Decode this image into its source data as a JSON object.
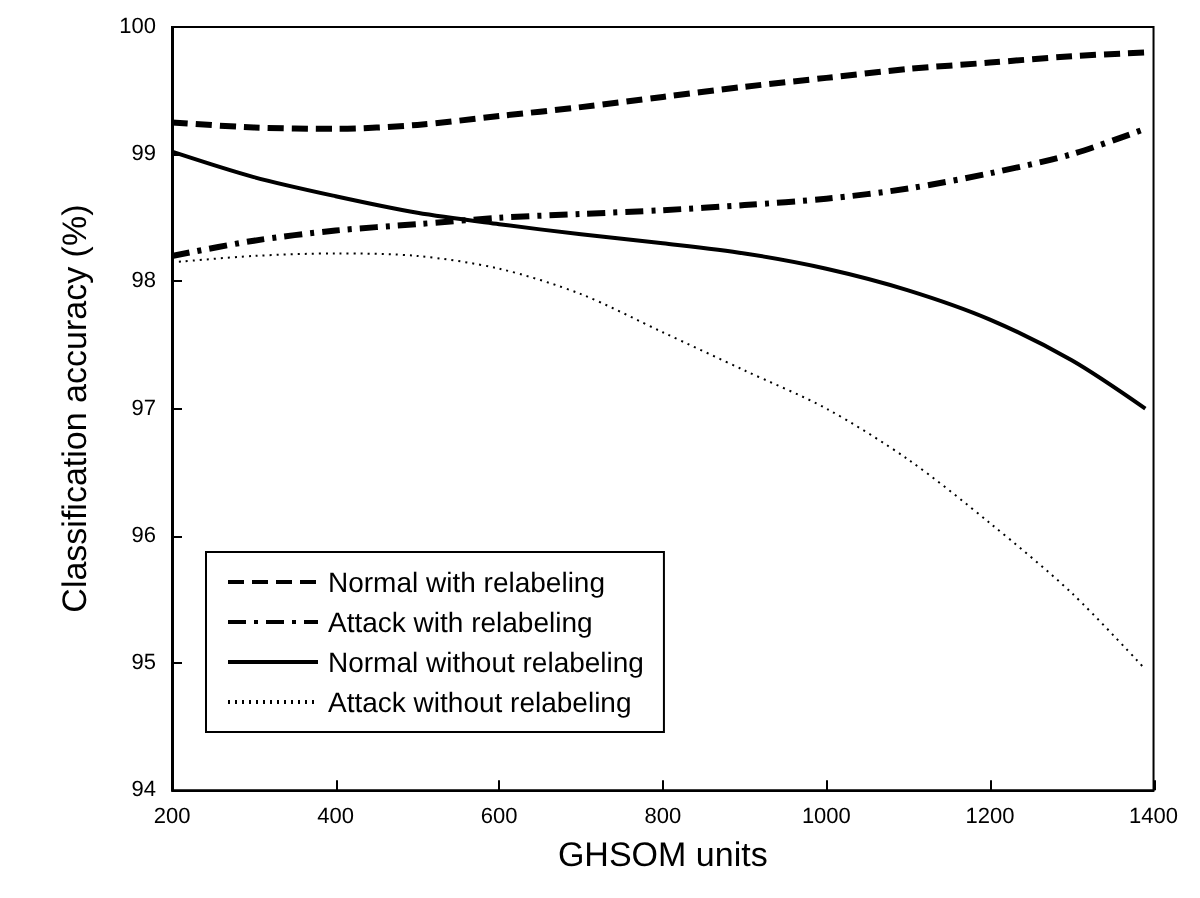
{
  "chart_data": {
    "type": "line",
    "xlabel": "GHSOM units",
    "ylabel": "Classification accuracy (%)",
    "xlim": [
      200,
      1400
    ],
    "xticks": [
      200,
      400,
      600,
      800,
      1000,
      1200,
      1400
    ],
    "ylim": [
      94,
      100
    ],
    "yticks": [
      94,
      95,
      96,
      97,
      98,
      99,
      100
    ],
    "x": [
      200,
      300,
      400,
      500,
      600,
      700,
      800,
      900,
      1000,
      1100,
      1200,
      1300,
      1390
    ],
    "series": [
      {
        "name": "Normal with relabeling",
        "color": "#000000",
        "line_style": "dashed",
        "values": [
          99.25,
          99.21,
          99.2,
          99.23,
          99.3,
          99.37,
          99.45,
          99.53,
          99.6,
          99.67,
          99.72,
          99.77,
          99.8
        ]
      },
      {
        "name": "Attack with relabeling",
        "color": "#000000",
        "line_style": "dashdot",
        "values": [
          98.2,
          98.32,
          98.4,
          98.45,
          98.5,
          98.53,
          98.56,
          98.6,
          98.65,
          98.73,
          98.85,
          99.0,
          99.2
        ]
      },
      {
        "name": "Normal without relabeling",
        "color": "#000000",
        "line_style": "solid",
        "values": [
          99.02,
          98.82,
          98.67,
          98.54,
          98.45,
          98.37,
          98.3,
          98.22,
          98.1,
          97.93,
          97.7,
          97.38,
          97.0
        ]
      },
      {
        "name": "Attack without relabeling",
        "color": "#000000",
        "line_style": "dotted",
        "values": [
          98.15,
          98.2,
          98.22,
          98.2,
          98.1,
          97.9,
          97.6,
          97.3,
          97.0,
          96.6,
          96.1,
          95.55,
          94.95
        ]
      }
    ],
    "legend": "bottom left",
    "grid": false,
    "marker": "none"
  }
}
